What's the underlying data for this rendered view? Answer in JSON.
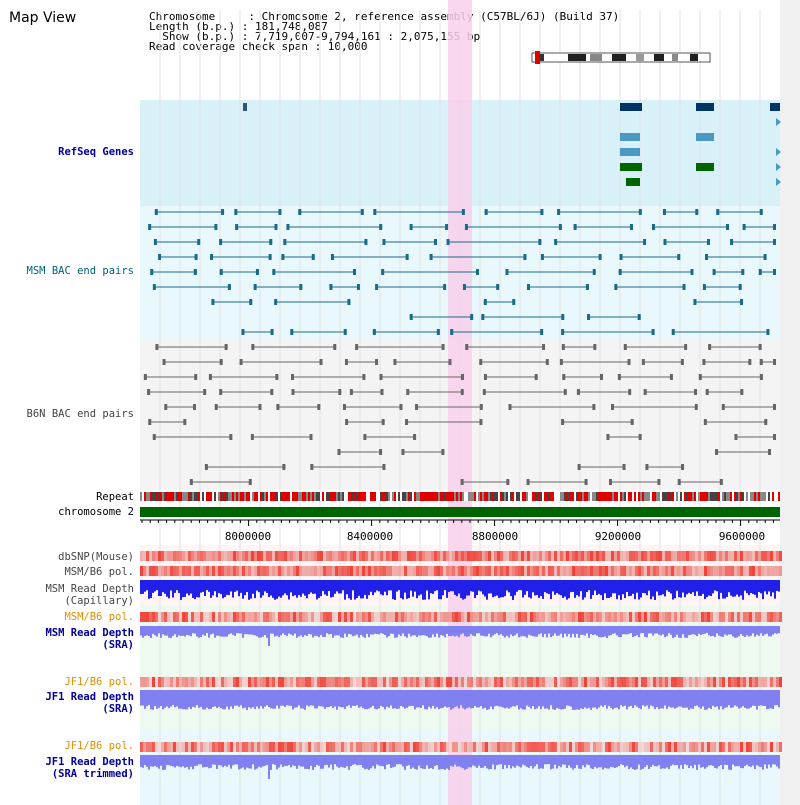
{
  "title": "Map View",
  "info": {
    "line1": "Chromosome     : Chromosome 2, reference assembly (C57BL/6J) (Build 37)",
    "line2": "Length (b.p.) : 181,748,087",
    "line3": "  Show (b.p.) : 7,719,007-9,794,161 : 2,075,155 bp",
    "line4": "Read coverage check span : 10,000"
  },
  "tracks": {
    "refseq": "RefSeq Genes",
    "msm_bac": "MSM BAC end pairs",
    "b6n_bac": "B6N BAC end pairs",
    "repeat": "Repeat",
    "chromosome": "chromosome 2",
    "dbsnp": "dbSNP(Mouse)",
    "msm_b6_pol": "MSM/B6 pol.",
    "msm_read_depth_cap": "MSM Read Depth\n(Capillary)",
    "msm_b6_pol_2": "MSM/B6 pol.",
    "msm_read_depth_sra": "MSM Read Depth\n(SRA)",
    "jf1_b6_pol": "JF1/B6 pol.",
    "jf1_read_depth_sra": "JF1 Read Depth\n(SRA)",
    "jf1_b6_pol_2": "JF1/B6 pol.",
    "jf1_read_depth_trim": "JF1 Read Depth\n(SRA trimmed)"
  },
  "axis": {
    "ticks": [
      "8000000",
      "8400000",
      "8800000",
      "9200000",
      "9600000"
    ]
  },
  "colors": {
    "refseq_bg": "#d8f0f8",
    "bac_bg": "#e8f8fc",
    "highlight": "#f8d0ec",
    "chromosome_bar": "#006400",
    "msm_depth": "#2020e8",
    "sra_depth": "#8080f0"
  }
}
